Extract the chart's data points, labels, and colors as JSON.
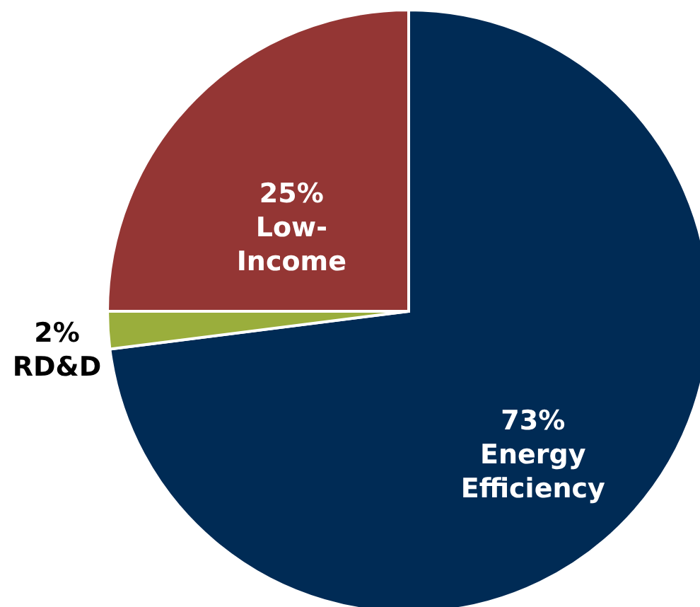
{
  "chart_data": {
    "type": "pie",
    "categories": [
      "Energy Efficiency",
      "RD&D",
      "Low-Income"
    ],
    "values": [
      73,
      2,
      25
    ],
    "value_labels": [
      "73%",
      "2%",
      "25%"
    ],
    "colors": [
      "#002b55",
      "#9aae3c",
      "#943634"
    ]
  }
}
